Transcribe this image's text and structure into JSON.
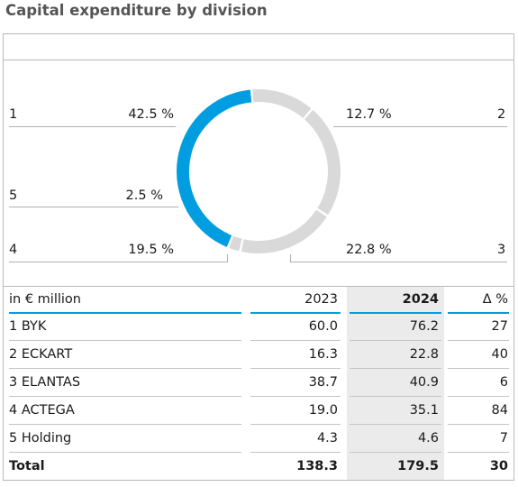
{
  "title": "Capital expenditure by division",
  "chart_data": {
    "type": "pie",
    "style": "donut",
    "slices": [
      {
        "number": "1",
        "share": 42.5,
        "label": "42.5 %",
        "color": "#009ee0"
      },
      {
        "number": "2",
        "share": 12.7,
        "label": "12.7 %",
        "color": "#d9d9d9"
      },
      {
        "number": "3",
        "share": 22.8,
        "label": "22.8 %",
        "color": "#d9d9d9"
      },
      {
        "number": "4",
        "share": 19.5,
        "label": "19.5 %",
        "color": "#d9d9d9"
      },
      {
        "number": "5",
        "share": 2.5,
        "label": "2.5 %",
        "color": "#d9d9d9"
      }
    ]
  },
  "table": {
    "unit_label": "in € million",
    "columns": [
      "2023",
      "2024",
      "Δ %"
    ],
    "rows": [
      {
        "division": "1 BYK",
        "v2023": "60.0",
        "v2024": "76.2",
        "delta": "27"
      },
      {
        "division": "2 ECKART",
        "v2023": "16.3",
        "v2024": "22.8",
        "delta": "40"
      },
      {
        "division": "3 ELANTAS",
        "v2023": "38.7",
        "v2024": "40.9",
        "delta": "6"
      },
      {
        "division": "4 ACTEGA",
        "v2023": "19.0",
        "v2024": "35.1",
        "delta": "84"
      },
      {
        "division": "5 Holding",
        "v2023": "4.3",
        "v2024": "4.6",
        "delta": "7"
      }
    ],
    "total": {
      "division": "Total",
      "v2023": "138.3",
      "v2024": "179.5",
      "delta": "30"
    }
  },
  "colors": {
    "accent": "#009ee0",
    "neutral": "#d9d9d9",
    "highlight_column": "#ebebeb"
  }
}
